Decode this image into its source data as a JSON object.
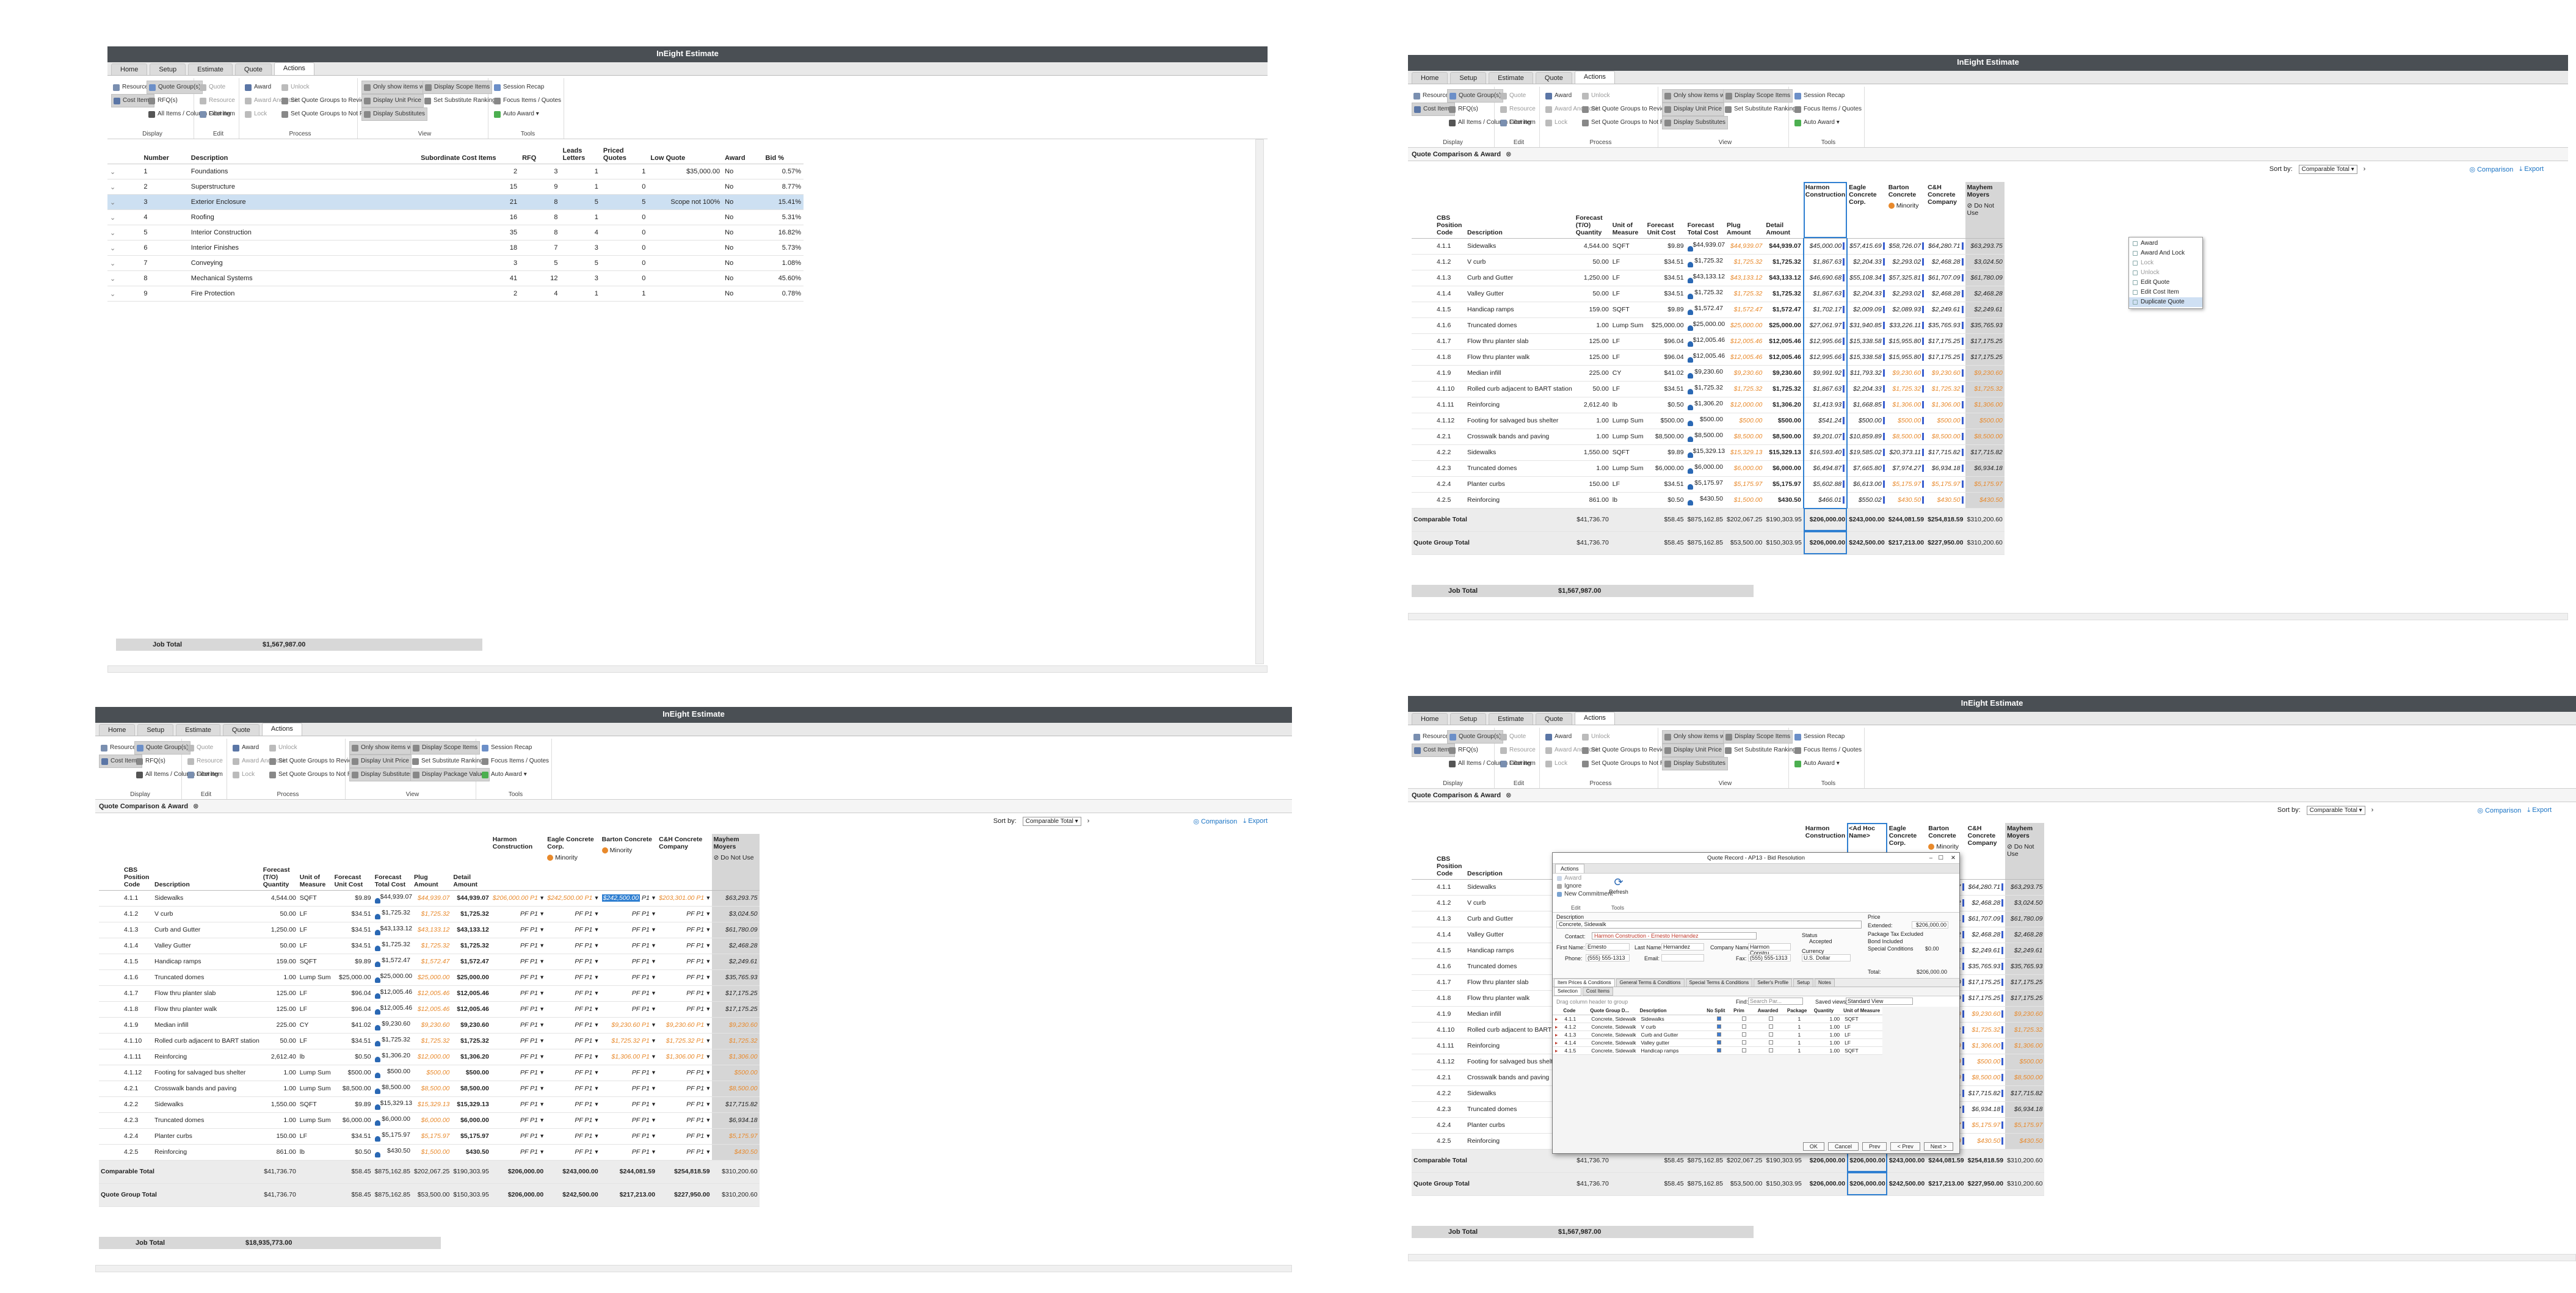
{
  "app_title": "InEight Estimate",
  "tabs": [
    "Home",
    "Setup",
    "Estimate",
    "Quote",
    "Actions"
  ],
  "ribbon": {
    "display": {
      "label": "Display",
      "resource_items": "Resource Items",
      "cost_items": "Cost Items",
      "quote_groups": "Quote Group(s)",
      "rfq": "RFQ(s)",
      "all_items": "All Items / Column Filtering"
    },
    "edit": {
      "label": "Edit",
      "quote": "Quote",
      "resource": "Resource",
      "cost_item": "Cost Item"
    },
    "process": {
      "label": "Process",
      "award": "Award",
      "unlock": "Unlock",
      "award_and_lock": "Award And Lock",
      "lock": "Lock",
      "set_reviewed": "Set Quote Groups to Reviewed",
      "set_not_reviewed": "Set Quote Groups to Not Reviewed"
    },
    "view": {
      "label": "View",
      "only_show": "Only show items with quotes",
      "display_scope": "Display Scope Items",
      "display_unit_price": "Display Unit Price",
      "set_sub_ranking": "Set Substitute Ranking",
      "display_substitutes": "Display Substitutes",
      "display_package_values": "Display Package Values"
    },
    "tools": {
      "label": "Tools",
      "session_recap": "Session Recap",
      "focus_items": "Focus Items / Quotes",
      "auto_award": "Auto Award"
    }
  },
  "quote_groups": {
    "headers": [
      "Number",
      "Description",
      "Subordinate Cost Items",
      "RFQ",
      "Leads Letters",
      "Priced Quotes",
      "Low Quote",
      "Award",
      "Bid %"
    ],
    "rows": [
      [
        "1",
        "Foundations",
        "2",
        "3",
        "1",
        "1",
        "$35,000.00",
        "No",
        "0.57%"
      ],
      [
        "2",
        "Superstructure",
        "15",
        "9",
        "1",
        "0",
        "",
        "No",
        "8.77%"
      ],
      [
        "3",
        "Exterior Enclosure",
        "21",
        "8",
        "5",
        "5",
        "Scope not 100%",
        "No",
        "15.41%"
      ],
      [
        "4",
        "Roofing",
        "16",
        "8",
        "1",
        "0",
        "",
        "No",
        "5.31%"
      ],
      [
        "5",
        "Interior Construction",
        "35",
        "8",
        "4",
        "0",
        "",
        "No",
        "16.82%"
      ],
      [
        "6",
        "Interior Finishes",
        "18",
        "7",
        "3",
        "0",
        "",
        "No",
        "5.73%"
      ],
      [
        "7",
        "Conveying",
        "3",
        "5",
        "5",
        "0",
        "",
        "No",
        "1.08%"
      ],
      [
        "8",
        "Mechanical Systems",
        "41",
        "12",
        "3",
        "0",
        "",
        "No",
        "45.60%"
      ],
      [
        "9",
        "Fire Protection",
        "2",
        "4",
        "1",
        "1",
        "",
        "No",
        "0.78%"
      ]
    ],
    "job_total_label": "Job Total",
    "job_total": "$1,567,987.00"
  },
  "comparison": {
    "panel_tab": "Quote Comparison & Award",
    "sort_by_label": "Sort by:",
    "sort_by_value": "Comparable Total",
    "comparison_link": "Comparison",
    "export_link": "Export",
    "headers": [
      "CBS Position Code",
      "Description",
      "Forecast (T/O) Quantity",
      "Unit of Measure",
      "Forecast Unit Cost",
      "Forecast Total Cost",
      "Plug Amount",
      "Detail Amount"
    ],
    "vendors": [
      "Harmon Construction",
      "Eagle Concrete Corp.",
      "Barton Concrete",
      "C&H Concrete Company",
      "Mayhem Moyers"
    ],
    "ad_hoc": "<Ad Hoc Name>",
    "minority": "Minority",
    "do_not_use": "Do Not Use",
    "rows": [
      {
        "code": "4.1.1",
        "desc": "Sidewalks",
        "qty": "4,544.00",
        "uom": "SQFT",
        "uc": "$9.89",
        "tc": "$44,939.07",
        "plug": "$44,939.07",
        "detail": "$44,939.07",
        "v": [
          "$45,000.00",
          "$57,415.69",
          "$58,726.07",
          "$64,280.71",
          "$63,293.75"
        ]
      },
      {
        "code": "4.1.2",
        "desc": "V curb",
        "qty": "50.00",
        "uom": "LF",
        "uc": "$34.51",
        "tc": "$1,725.32",
        "plug": "$1,725.32",
        "detail": "$1,725.32",
        "v": [
          "$1,867.63",
          "$2,204.33",
          "$2,293.02",
          "$2,468.28",
          "$3,024.50"
        ]
      },
      {
        "code": "4.1.3",
        "desc": "Curb and Gutter",
        "qty": "1,250.00",
        "uom": "LF",
        "uc": "$34.51",
        "tc": "$43,133.12",
        "plug": "$43,133.12",
        "detail": "$43,133.12",
        "v": [
          "$46,690.68",
          "$55,108.34",
          "$57,325.81",
          "$61,707.09",
          "$61,780.09"
        ]
      },
      {
        "code": "4.1.4",
        "desc": "Valley Gutter",
        "qty": "50.00",
        "uom": "LF",
        "uc": "$34.51",
        "tc": "$1,725.32",
        "plug": "$1,725.32",
        "detail": "$1,725.32",
        "v": [
          "$1,867.63",
          "$2,204.33",
          "$2,293.02",
          "$2,468.28",
          "$2,468.28"
        ]
      },
      {
        "code": "4.1.5",
        "desc": "Handicap ramps",
        "qty": "159.00",
        "uom": "SQFT",
        "uc": "$9.89",
        "tc": "$1,572.47",
        "plug": "$1,572.47",
        "detail": "$1,572.47",
        "v": [
          "$1,702.17",
          "$2,009.09",
          "$2,089.93",
          "$2,249.61",
          "$2,249.61"
        ]
      },
      {
        "code": "4.1.6",
        "desc": "Truncated domes",
        "qty": "1.00",
        "uom": "Lump Sum",
        "uc": "$25,000.00",
        "tc": "$25,000.00",
        "plug": "$25,000.00",
        "detail": "$25,000.00",
        "v": [
          "$27,061.97",
          "$31,940.85",
          "$33,226.11",
          "$35,765.93",
          "$35,765.93"
        ]
      },
      {
        "code": "4.1.7",
        "desc": "Flow thru planter slab",
        "qty": "125.00",
        "uom": "LF",
        "uc": "$96.04",
        "tc": "$12,005.46",
        "plug": "$12,005.46",
        "detail": "$12,005.46",
        "v": [
          "$12,995.66",
          "$15,338.58",
          "$15,955.80",
          "$17,175.25",
          "$17,175.25"
        ]
      },
      {
        "code": "4.1.8",
        "desc": "Flow thru planter walk",
        "qty": "125.00",
        "uom": "LF",
        "uc": "$96.04",
        "tc": "$12,005.46",
        "plug": "$12,005.46",
        "detail": "$12,005.46",
        "v": [
          "$12,995.66",
          "$15,338.58",
          "$15,955.80",
          "$17,175.25",
          "$17,175.25"
        ]
      },
      {
        "code": "4.1.9",
        "desc": "Median infill",
        "qty": "225.00",
        "uom": "CY",
        "uc": "$41.02",
        "tc": "$9,230.60",
        "plug": "$9,230.60",
        "detail": "$9,230.60",
        "v": [
          "$9,991.92",
          "$11,793.32",
          "$9,230.60",
          "$9,230.60",
          "$9,230.60"
        ]
      },
      {
        "code": "4.1.10",
        "desc": "Rolled curb adjacent to BART station",
        "qty": "50.00",
        "uom": "LF",
        "uc": "$34.51",
        "tc": "$1,725.32",
        "plug": "$1,725.32",
        "detail": "$1,725.32",
        "v": [
          "$1,867.63",
          "$2,204.33",
          "$1,725.32",
          "$1,725.32",
          "$1,725.32"
        ]
      },
      {
        "code": "4.1.11",
        "desc": "Reinforcing",
        "qty": "2,612.40",
        "uom": "lb",
        "uc": "$0.50",
        "tc": "$1,306.20",
        "plug": "$12,000.00",
        "detail": "$1,306.20",
        "v": [
          "$1,413.93",
          "$1,668.85",
          "$1,306.00",
          "$1,306.00",
          "$1,306.00"
        ]
      },
      {
        "code": "4.1.12",
        "desc": "Footing for salvaged bus shelter",
        "qty": "1.00",
        "uom": "Lump Sum",
        "uc": "$500.00",
        "tc": "$500.00",
        "plug": "$500.00",
        "detail": "$500.00",
        "v": [
          "$541.24",
          "$500.00",
          "$500.00",
          "$500.00",
          "$500.00"
        ]
      },
      {
        "code": "4.2.1",
        "desc": "Crosswalk bands and paving",
        "qty": "1.00",
        "uom": "Lump Sum",
        "uc": "$8,500.00",
        "tc": "$8,500.00",
        "plug": "$8,500.00",
        "detail": "$8,500.00",
        "v": [
          "$9,201.07",
          "$10,859.89",
          "$8,500.00",
          "$8,500.00",
          "$8,500.00"
        ]
      },
      {
        "code": "4.2.2",
        "desc": "Sidewalks",
        "qty": "1,550.00",
        "uom": "SQFT",
        "uc": "$9.89",
        "tc": "$15,329.13",
        "plug": "$15,329.13",
        "detail": "$15,329.13",
        "v": [
          "$16,593.40",
          "$19,585.02",
          "$20,373.11",
          "$17,715.82",
          "$17,715.82"
        ]
      },
      {
        "code": "4.2.3",
        "desc": "Truncated domes",
        "qty": "1.00",
        "uom": "Lump Sum",
        "uc": "$6,000.00",
        "tc": "$6,000.00",
        "plug": "$6,000.00",
        "detail": "$6,000.00",
        "v": [
          "$6,494.87",
          "$7,665.80",
          "$7,974.27",
          "$6,934.18",
          "$6,934.18"
        ]
      },
      {
        "code": "4.2.4",
        "desc": "Planter curbs",
        "qty": "150.00",
        "uom": "LF",
        "uc": "$34.51",
        "tc": "$5,175.97",
        "plug": "$5,175.97",
        "detail": "$5,175.97",
        "v": [
          "$5,602.88",
          "$6,613.00",
          "$5,175.97",
          "$5,175.97",
          "$5,175.97"
        ]
      },
      {
        "code": "4.2.5",
        "desc": "Reinforcing",
        "qty": "861.00",
        "uom": "lb",
        "uc": "$0.50",
        "tc": "$430.50",
        "plug": "$1,500.00",
        "detail": "$430.50",
        "v": [
          "$466.01",
          "$550.02",
          "$430.50",
          "$430.50",
          "$430.50"
        ]
      }
    ],
    "comparable_total": {
      "label": "Comparable Total",
      "qty": "$41,736.70",
      "uc": "$58.45",
      "tc": "$875,162.85",
      "plug": "$202,067.25",
      "detail": "$190,303.95",
      "v": [
        "$206,000.00",
        "$243,000.00",
        "$244,081.59",
        "$254,818.59",
        "$310,200.60"
      ]
    },
    "quote_group_total": {
      "label": "Quote Group Total",
      "qty": "$41,736.70",
      "uc": "$58.45",
      "tc": "$875,162.85",
      "plug": "$53,500.00",
      "detail": "$150,303.95",
      "v": [
        "$206,000.00",
        "$242,500.00",
        "$217,213.00",
        "$227,950.00",
        "$310,200.60"
      ]
    },
    "job_total_label": "Job Total",
    "job_total": "$1,567,987.00",
    "job_total_bl": "$18,935,773.00"
  },
  "context_menu": [
    "Award",
    "Award And Lock",
    "Lock",
    "Unlock",
    "Edit Quote",
    "Edit Cost Item",
    "Duplicate Quote"
  ],
  "bl_inline": {
    "harmon": [
      "$206,000.00",
      "$242,500.00",
      "$203,301.00"
    ],
    "pf": "P1",
    "pf_blank": "PF P1"
  },
  "dialog": {
    "title": "Quote Record - AP13 - Bid Resolution",
    "tab_actions": "Actions",
    "buttons": [
      "Award",
      "Ignore",
      "New Commitment",
      "Refresh"
    ],
    "group_labels": [
      "Edit",
      "Tools"
    ],
    "description_label": "Description",
    "description_value": "Concrete, Sidewalk",
    "contact_label": "Contact:",
    "contact_value": "Harmon Construction - Ernesto Hernandez",
    "first_name_label": "First Name:",
    "first_name": "Ernesto",
    "last_name_label": "Last Name:",
    "last_name": "Hernandez",
    "company_label": "Company Name:",
    "company": "Harmon Constru",
    "phone_label": "Phone:",
    "phone": "(555) 555-1313",
    "email_label": "Email:",
    "fax_label": "Fax:",
    "fax": "(555) 555-1313",
    "price_label": "Price",
    "extended_label": "Extended:",
    "extended": "$206,000.00",
    "pkg_excluded_label": "Package Tax Excluded",
    "bond_label": "Bond Included",
    "special_label": "Special Conditions",
    "special": "$0.00",
    "status_label": "Status",
    "status": "Accepted",
    "currency_label": "Currency",
    "currency": "U.S. Dollar",
    "total_label": "Total:",
    "total": "$206,000.00",
    "subtabs": [
      "Item Prices & Conditions",
      "General Terms & Conditions",
      "Special Terms & Conditions",
      "Seller's Profile",
      "Setup",
      "Notes"
    ],
    "inner_tabs": [
      "Selection",
      "Cost Items"
    ],
    "drag_hint": "Drag column header to group",
    "find_label": "Find:",
    "find_placeholder": "Search Par...",
    "saved_views_label": "Saved views:",
    "saved_views": "Standard View",
    "grid_headers": [
      "Code",
      "Quote Group D...",
      "Description",
      "No Split",
      "Prim",
      "Awarded",
      "Package",
      "Quantity",
      "Unit of Measure"
    ],
    "grid_rows": [
      [
        "4.1.1",
        "Concrete, Sidewalk",
        "Sidewalks",
        "1",
        "1.00",
        "SQFT"
      ],
      [
        "4.1.2",
        "Concrete, Sidewalk",
        "V curb",
        "1",
        "1.00",
        "LF"
      ],
      [
        "4.1.3",
        "Concrete, Sidewalk",
        "Curb and Gutter",
        "1",
        "1.00",
        "LF"
      ],
      [
        "4.1.4",
        "Concrete, Sidewalk",
        "Valley gutter",
        "1",
        "1.00",
        "LF"
      ],
      [
        "4.1.5",
        "Concrete, Sidewalk",
        "Handicap ramps",
        "1",
        "1.00",
        "SQFT"
      ]
    ],
    "footer_buttons": [
      "OK",
      "Cancel",
      "Prev",
      "< Prev",
      "Next >"
    ]
  },
  "colors": {
    "titlebar": "#4a4f54",
    "accent": "#1a73c4",
    "plug": "#e8892b",
    "selected_row": "#cde0f2",
    "minority": "#e8892b"
  }
}
